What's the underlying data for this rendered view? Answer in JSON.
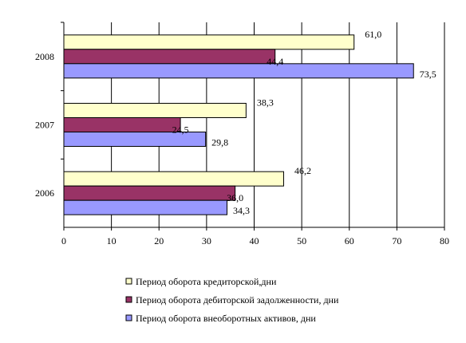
{
  "chart_data": {
    "type": "bar",
    "orientation": "horizontal",
    "categories": [
      "2006",
      "2007",
      "2008"
    ],
    "series": [
      {
        "name": "Период  оборота кредиторской,дни",
        "values": [
          46.2,
          38.3,
          61.0
        ],
        "labels": [
          "46,2",
          "38,3",
          "61,0"
        ],
        "color": "#ffffcc"
      },
      {
        "name": "Период  оборота дебиторской задолженности, дни",
        "values": [
          36.0,
          24.5,
          44.4
        ],
        "labels": [
          "36,0",
          "24,5",
          "44,4"
        ],
        "color": "#993366"
      },
      {
        "name": "Период  оборота внеоборотных активов, дни",
        "values": [
          34.3,
          29.8,
          73.5
        ],
        "labels": [
          "34,3",
          "29,8",
          "73,5"
        ],
        "color": "#9999ff"
      }
    ],
    "xlim": [
      0,
      80
    ],
    "xticks": [
      "0",
      "10",
      "20",
      "30",
      "40",
      "50",
      "60",
      "70",
      "80"
    ],
    "grid": "vertical",
    "legend_position": "bottom",
    "title": "",
    "xlabel": "",
    "ylabel": ""
  }
}
